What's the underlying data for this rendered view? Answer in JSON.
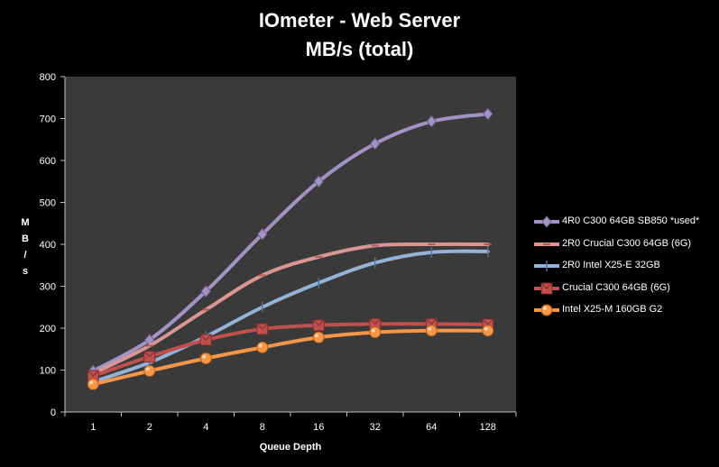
{
  "chart_data": {
    "type": "line",
    "title": "IOmeter - Web Server",
    "subtitle": "MB/s (total)",
    "xlabel": "Queue Depth",
    "ylabel": "MB/s",
    "categories": [
      "1",
      "2",
      "4",
      "8",
      "16",
      "32",
      "64",
      "128"
    ],
    "ylim": [
      0,
      800
    ],
    "yticks": [
      "0",
      "100",
      "200",
      "300",
      "400",
      "500",
      "600",
      "700",
      "800"
    ],
    "grid": false,
    "legend_position": "right",
    "plot_background": "#3a3a3a",
    "series": [
      {
        "name": "4R0 C300 64GB SB850 *used*",
        "color": "#a293c4",
        "marker": "diamond",
        "values": [
          98,
          172,
          288,
          424,
          550,
          640,
          693,
          711
        ]
      },
      {
        "name": "2R0 Crucial C300 64GB (6G)",
        "color": "#d99694",
        "marker": "dash",
        "values": [
          92,
          158,
          244,
          326,
          370,
          397,
          400,
          400
        ]
      },
      {
        "name": "2R0 Intel X25-E 32GB",
        "color": "#95b3d7",
        "marker": "plus",
        "values": [
          72,
          118,
          180,
          250,
          308,
          356,
          381,
          383
        ]
      },
      {
        "name": "Crucial C300 64GB (6G)",
        "color": "#c0504d",
        "marker": "square",
        "values": [
          86,
          132,
          172,
          198,
          207,
          210,
          210,
          209
        ]
      },
      {
        "name": "Intel X25-M 160GB G2",
        "color": "#f79646",
        "marker": "circle",
        "values": [
          66,
          98,
          128,
          154,
          178,
          190,
          194,
          194
        ]
      }
    ]
  }
}
